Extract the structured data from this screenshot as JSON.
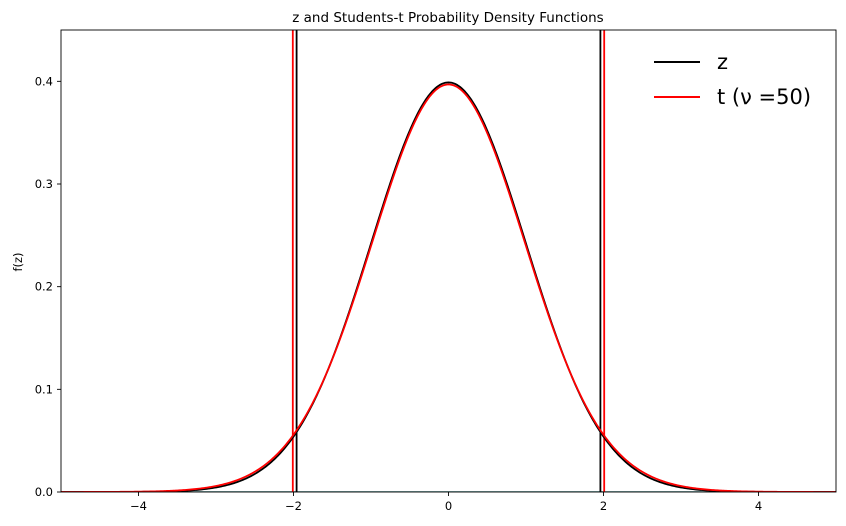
{
  "chart_data": {
    "type": "line",
    "title": "z and Students-t Probability Density Functions",
    "xlabel": "",
    "ylabel": "f(z)",
    "xlim": [
      -5,
      5
    ],
    "ylim": [
      0,
      0.45
    ],
    "xticks": [
      -4,
      -2,
      0,
      2,
      4
    ],
    "xtick_labels": [
      "−4",
      "−2",
      "0",
      "2",
      "4"
    ],
    "yticks": [
      0.0,
      0.1,
      0.2,
      0.3,
      0.4
    ],
    "ytick_labels": [
      "0.0",
      "0.1",
      "0.2",
      "0.3",
      "0.4"
    ],
    "grid": false,
    "legend_position": "top-right",
    "series": [
      {
        "name": "z",
        "color": "#000000",
        "distribution": "standard normal",
        "x": [
          -5,
          -4.5,
          -4,
          -3.5,
          -3,
          -2.5,
          -2,
          -1.5,
          -1,
          -0.5,
          0,
          0.5,
          1,
          1.5,
          2,
          2.5,
          3,
          3.5,
          4,
          4.5,
          5
        ],
        "y": [
          1.5e-06,
          1.6e-05,
          0.00013,
          0.00087,
          0.0044,
          0.0175,
          0.054,
          0.1295,
          0.242,
          0.352,
          0.3989,
          0.352,
          0.242,
          0.1295,
          0.054,
          0.0175,
          0.0044,
          0.00087,
          0.00013,
          1.6e-05,
          1.5e-06
        ]
      },
      {
        "name": "t (ν =50)",
        "color": "#ff0000",
        "distribution": "student-t",
        "df": 50,
        "x": [
          -5,
          -4.5,
          -4,
          -3.5,
          -3,
          -2.5,
          -2,
          -1.5,
          -1,
          -0.5,
          0,
          0.5,
          1,
          1.5,
          2,
          2.5,
          3,
          3.5,
          4,
          4.5,
          5
        ],
        "y": [
          2e-05,
          8e-05,
          0.0004,
          0.0016,
          0.0058,
          0.0194,
          0.0553,
          0.129,
          0.2396,
          0.3501,
          0.397,
          0.3501,
          0.2396,
          0.129,
          0.0553,
          0.0194,
          0.0058,
          0.0016,
          0.0004,
          8e-05,
          2e-05
        ]
      }
    ],
    "critical_lines": [
      {
        "series": "z",
        "x": -1.96,
        "color": "#000000"
      },
      {
        "series": "z",
        "x": 1.96,
        "color": "#000000"
      },
      {
        "series": "t (ν =50)",
        "x": -2.009,
        "color": "#ff0000"
      },
      {
        "series": "t (ν =50)",
        "x": 2.009,
        "color": "#ff0000"
      }
    ],
    "baseline": {
      "y": 0,
      "color": "#2a7f7f"
    }
  }
}
